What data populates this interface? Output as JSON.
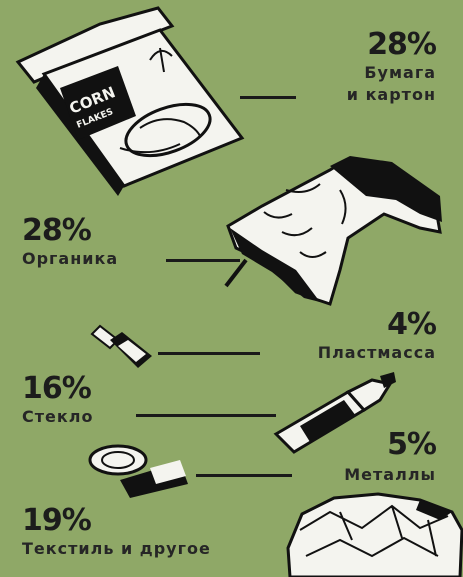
{
  "categories": [
    {
      "percent": "28%",
      "label_line1": "Бумага",
      "label_line2": "и картон",
      "icon": "cereal-box-icon"
    },
    {
      "percent": "28%",
      "label_line1": "Органика",
      "icon": "banana-peel-icon"
    },
    {
      "percent": "4%",
      "label_line1": "Пластмасса",
      "icon": "plastic-bottle-icon"
    },
    {
      "percent": "16%",
      "label_line1": "Стекло",
      "icon": "glass-bottle-icon"
    },
    {
      "percent": "5%",
      "label_line1": "Металлы",
      "icon": "tin-can-icon"
    },
    {
      "percent": "19%",
      "label_line1": "Текстиль и другое",
      "icon": "crumpled-textile-icon"
    }
  ],
  "box_print": {
    "line1": "CORN",
    "line2": "FLAKES"
  },
  "colors": {
    "background": "#8fa867",
    "ink": "#1a1a1a",
    "paper": "#f4f4ef"
  }
}
